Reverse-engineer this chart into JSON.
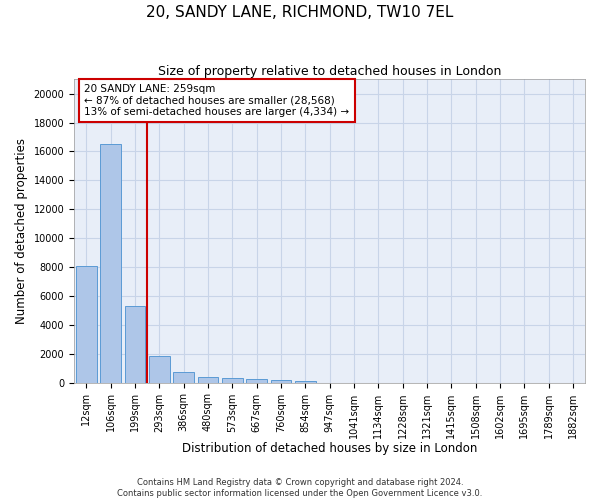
{
  "title": "20, SANDY LANE, RICHMOND, TW10 7EL",
  "subtitle": "Size of property relative to detached houses in London",
  "xlabel": "Distribution of detached houses by size in London",
  "ylabel": "Number of detached properties",
  "categories": [
    "12sqm",
    "106sqm",
    "199sqm",
    "293sqm",
    "386sqm",
    "480sqm",
    "573sqm",
    "667sqm",
    "760sqm",
    "854sqm",
    "947sqm",
    "1041sqm",
    "1134sqm",
    "1228sqm",
    "1321sqm",
    "1415sqm",
    "1508sqm",
    "1602sqm",
    "1695sqm",
    "1789sqm",
    "1882sqm"
  ],
  "values": [
    8100,
    16500,
    5300,
    1850,
    700,
    380,
    290,
    230,
    180,
    130,
    0,
    0,
    0,
    0,
    0,
    0,
    0,
    0,
    0,
    0,
    0
  ],
  "bar_color": "#aec6e8",
  "bar_edge_color": "#5b9bd5",
  "grid_color": "#c8d4e8",
  "background_color": "#e8eef8",
  "vline_x": 2.5,
  "vline_color": "#cc0000",
  "annotation_text": "20 SANDY LANE: 259sqm\n← 87% of detached houses are smaller (28,568)\n13% of semi-detached houses are larger (4,334) →",
  "annotation_box_color": "#ffffff",
  "annotation_box_edge": "#cc0000",
  "footer_line1": "Contains HM Land Registry data © Crown copyright and database right 2024.",
  "footer_line2": "Contains public sector information licensed under the Open Government Licence v3.0.",
  "ylim": [
    0,
    21000
  ],
  "yticks": [
    0,
    2000,
    4000,
    6000,
    8000,
    10000,
    12000,
    14000,
    16000,
    18000,
    20000
  ],
  "title_fontsize": 11,
  "subtitle_fontsize": 9,
  "axis_label_fontsize": 8.5,
  "tick_fontsize": 7,
  "annotation_fontsize": 7.5,
  "footer_fontsize": 6
}
